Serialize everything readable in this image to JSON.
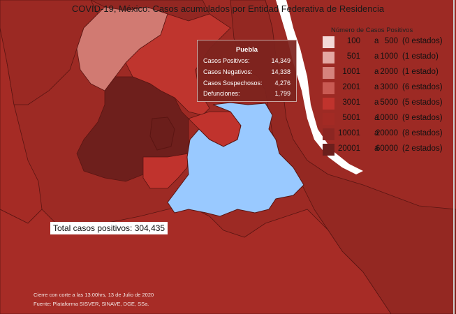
{
  "title": "COVID-19, México: Casos acumulados por Entidad Federativa de Residencia",
  "legend": {
    "title": "Número de Casos Positivos",
    "items": [
      {
        "min": "100",
        "max": "500",
        "states": "(0 estados)",
        "color": "#f4d9d7"
      },
      {
        "min": "501",
        "max": "1000",
        "states": "(1 estado)",
        "color": "#e4a8a3"
      },
      {
        "min": "1001",
        "max": "2000",
        "states": "(1 estado)",
        "color": "#d6837d"
      },
      {
        "min": "2001",
        "max": "3000",
        "states": "(6 estados)",
        "color": "#c95a53"
      },
      {
        "min": "3001",
        "max": "5000",
        "states": "(5 estados)",
        "color": "#c0332d"
      },
      {
        "min": "5001",
        "max": "10000",
        "states": "(9 estados)",
        "color": "#a32a24"
      },
      {
        "min": "10001",
        "max": "20000",
        "states": "(8 estados)",
        "color": "#8c2622"
      },
      {
        "min": "20001",
        "max": "60000",
        "states": "(2 estados)",
        "color": "#6b1f1c"
      }
    ],
    "separator": "a"
  },
  "tooltip": {
    "state": "Puebla",
    "rows": [
      {
        "label": "Casos Positivos:",
        "value": "14,349"
      },
      {
        "label": "Casos Negativos:",
        "value": "14,338"
      },
      {
        "label": "Casos Sospechosos:",
        "value": "4,276"
      },
      {
        "label": "Defunciones:",
        "value": "1,799"
      }
    ]
  },
  "total": "Total casos positivos: 304,435",
  "footnotes": {
    "cutoff": "Cierre con corte a las 13:00hrs, 13 de Julio de 2020",
    "source": "Fuente: Plataforma SISVER, SINAVE, DGE, SSa."
  },
  "colors": {
    "highlight": "#99c9ff",
    "border": "#5a1512"
  }
}
